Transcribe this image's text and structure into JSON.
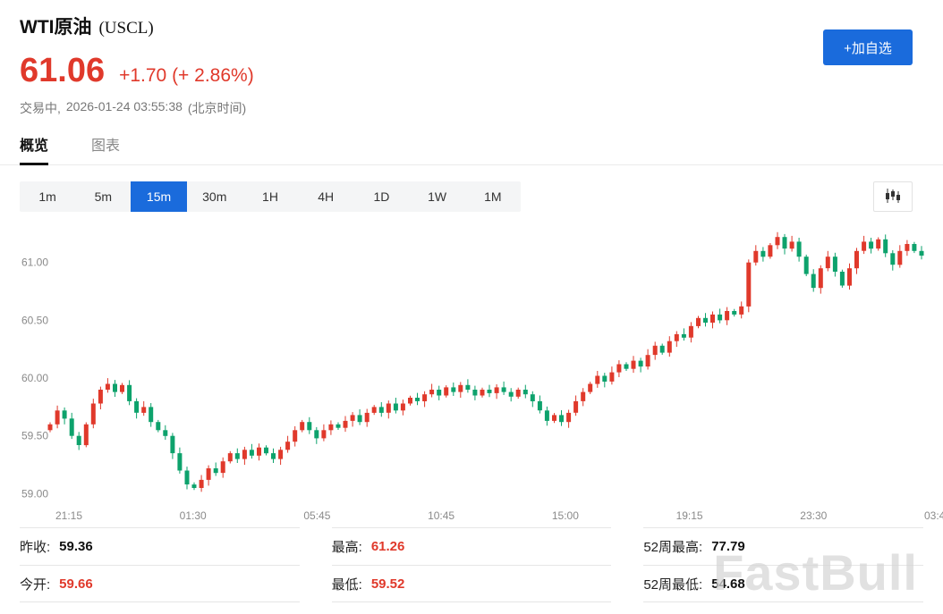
{
  "header": {
    "title": "WTI原油",
    "symbol": "(USCL)",
    "price": "61.06",
    "change": "+1.70 (+ 2.86%)",
    "status_state": "交易中,",
    "status_time": "2026-01-24 03:55:38",
    "status_zone": "(北京时间)",
    "add_watchlist_label": "+加自选"
  },
  "tabs": [
    {
      "label": "概览",
      "active": true
    },
    {
      "label": "图表",
      "active": false
    }
  ],
  "timeframes": {
    "options": [
      "1m",
      "5m",
      "15m",
      "30m",
      "1H",
      "4H",
      "1D",
      "1W",
      "1M"
    ],
    "active": "15m"
  },
  "toolbar_icons": {
    "chart_type": "candlestick-style-icon"
  },
  "chart_data": {
    "type": "candlestick",
    "title": "WTI原油 (USCL) 15m",
    "y_ticks": [
      "61.00",
      "60.50",
      "60.00",
      "59.50",
      "59.00"
    ],
    "x_ticks": [
      "21:15",
      "01:30",
      "05:45",
      "10:45",
      "15:00",
      "19:15",
      "23:30",
      "03:45"
    ],
    "y_range": [
      58.98,
      61.33
    ],
    "open_first": 59.55,
    "closes": [
      59.6,
      59.72,
      59.65,
      59.5,
      59.42,
      59.6,
      59.78,
      59.9,
      59.95,
      59.88,
      59.94,
      59.8,
      59.7,
      59.75,
      59.62,
      59.55,
      59.5,
      59.35,
      59.2,
      59.08,
      59.05,
      59.12,
      59.22,
      59.18,
      59.28,
      59.35,
      59.3,
      59.38,
      59.33,
      59.4,
      59.35,
      59.3,
      59.38,
      59.45,
      59.55,
      59.62,
      59.55,
      59.48,
      59.55,
      59.6,
      59.57,
      59.63,
      59.68,
      59.62,
      59.7,
      59.75,
      59.7,
      59.78,
      59.72,
      59.78,
      59.83,
      59.8,
      59.86,
      59.9,
      59.85,
      59.92,
      59.88,
      59.94,
      59.9,
      59.85,
      59.9,
      59.87,
      59.92,
      59.88,
      59.84,
      59.9,
      59.86,
      59.8,
      59.72,
      59.63,
      59.68,
      59.62,
      59.7,
      59.8,
      59.88,
      59.95,
      60.02,
      59.97,
      60.05,
      60.12,
      60.08,
      60.15,
      60.1,
      60.2,
      60.28,
      60.22,
      60.32,
      60.38,
      60.35,
      60.45,
      60.52,
      60.48,
      60.55,
      60.5,
      60.58,
      60.55,
      60.62,
      61.0,
      61.1,
      61.05,
      61.15,
      61.22,
      61.12,
      61.18,
      61.05,
      60.9,
      60.78,
      60.95,
      61.05,
      60.92,
      60.8,
      60.95,
      61.1,
      61.18,
      61.12,
      61.2,
      61.08,
      60.98,
      61.1,
      61.16,
      61.1,
      61.06
    ],
    "up_color": "#e0392b",
    "down_color": "#0da26c",
    "grid": false,
    "legend": "none"
  },
  "stats": {
    "rows": [
      [
        {
          "label": "昨收:",
          "value": "59.36",
          "red": false
        },
        {
          "label": "最高:",
          "value": "61.26",
          "red": true
        },
        {
          "label": "52周最高:",
          "value": "77.79",
          "red": false
        }
      ],
      [
        {
          "label": "今开:",
          "value": "59.66",
          "red": true
        },
        {
          "label": "最低:",
          "value": "59.52",
          "red": true
        },
        {
          "label": "52周最低:",
          "value": "54.68",
          "red": false
        }
      ]
    ]
  },
  "watermark": "FastBull",
  "colors": {
    "price_red": "#e0392b",
    "candle_up": "#e0392b",
    "candle_down": "#0da26c",
    "accent_blue": "#1a6bdc",
    "muted_text": "#777777"
  }
}
